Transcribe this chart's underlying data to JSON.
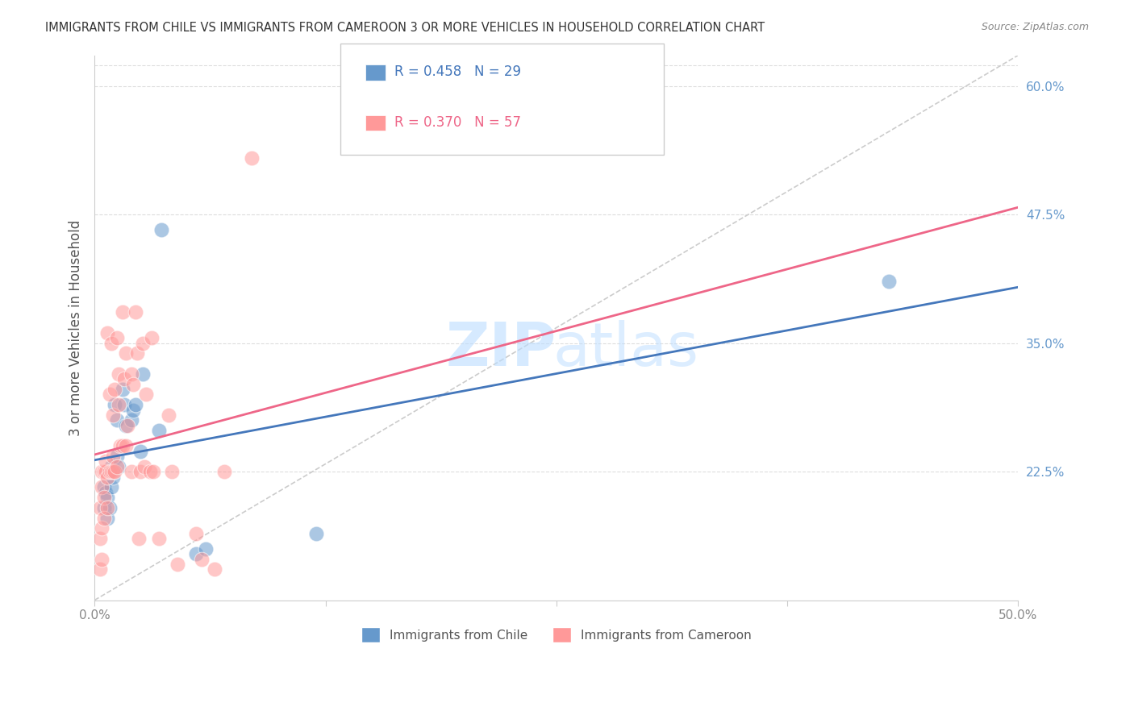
{
  "title": "IMMIGRANTS FROM CHILE VS IMMIGRANTS FROM CAMEROON 3 OR MORE VEHICLES IN HOUSEHOLD CORRELATION CHART",
  "source": "Source: ZipAtlas.com",
  "xlabel": "",
  "ylabel": "3 or more Vehicles in Household",
  "xlim": [
    0.0,
    50.0
  ],
  "ylim": [
    10.0,
    63.0
  ],
  "xticks": [
    0.0,
    12.5,
    25.0,
    37.5,
    50.0
  ],
  "xticklabels": [
    "0.0%",
    "",
    "",
    "",
    "50.0%"
  ],
  "yticks_right": [
    22.5,
    35.0,
    47.5,
    60.0
  ],
  "ytick_right_labels": [
    "22.5%",
    "35.0%",
    "47.5%",
    "60.0%"
  ],
  "legend_chile_R": "0.458",
  "legend_chile_N": "29",
  "legend_cameroon_R": "0.370",
  "legend_cameroon_N": "57",
  "chile_color": "#6699CC",
  "cameroon_color": "#FF9999",
  "chile_line_color": "#4477BB",
  "cameroon_line_color": "#EE6688",
  "diagonal_color": "#CCCCCC",
  "background_color": "#FFFFFF",
  "grid_color": "#DDDDDD",
  "title_color": "#333333",
  "axis_label_color": "#555555",
  "right_tick_color": "#6699CC",
  "chile_points_x": [
    0.5,
    0.5,
    0.6,
    0.7,
    0.7,
    0.8,
    0.8,
    0.9,
    0.9,
    1.0,
    1.0,
    1.1,
    1.2,
    1.2,
    1.3,
    1.5,
    1.6,
    1.7,
    2.0,
    2.1,
    2.2,
    2.5,
    2.6,
    3.5,
    3.6,
    5.5,
    6.0,
    12.0,
    43.0
  ],
  "chile_points_y": [
    19.0,
    21.0,
    20.5,
    18.0,
    20.0,
    22.5,
    19.0,
    21.0,
    23.0,
    22.0,
    22.8,
    29.0,
    27.5,
    24.0,
    23.0,
    30.5,
    29.0,
    27.0,
    27.5,
    28.5,
    29.0,
    24.5,
    32.0,
    26.5,
    46.0,
    14.5,
    15.0,
    16.5,
    41.0
  ],
  "cameroon_points_x": [
    0.3,
    0.3,
    0.3,
    0.4,
    0.4,
    0.4,
    0.4,
    0.5,
    0.5,
    0.5,
    0.6,
    0.6,
    0.7,
    0.7,
    0.7,
    0.8,
    0.8,
    0.9,
    0.9,
    1.0,
    1.0,
    1.0,
    1.1,
    1.1,
    1.2,
    1.2,
    1.3,
    1.3,
    1.4,
    1.5,
    1.5,
    1.6,
    1.7,
    1.7,
    1.8,
    2.0,
    2.0,
    2.1,
    2.2,
    2.3,
    2.4,
    2.5,
    2.6,
    2.7,
    2.8,
    3.0,
    3.1,
    3.2,
    3.5,
    4.0,
    4.2,
    4.5,
    5.5,
    5.8,
    6.5,
    7.0,
    8.5
  ],
  "cameroon_points_y": [
    13.0,
    16.0,
    19.0,
    14.0,
    17.0,
    21.0,
    22.5,
    18.0,
    20.0,
    22.5,
    22.5,
    23.5,
    19.0,
    22.0,
    36.0,
    22.5,
    30.0,
    22.5,
    35.0,
    22.5,
    24.0,
    28.0,
    22.5,
    30.5,
    23.0,
    35.5,
    29.0,
    32.0,
    25.0,
    25.0,
    38.0,
    31.5,
    25.0,
    34.0,
    27.0,
    22.5,
    32.0,
    31.0,
    38.0,
    34.0,
    16.0,
    22.5,
    35.0,
    23.0,
    30.0,
    22.5,
    35.5,
    22.5,
    16.0,
    28.0,
    22.5,
    13.5,
    16.5,
    14.0,
    13.0,
    22.5,
    53.0
  ]
}
